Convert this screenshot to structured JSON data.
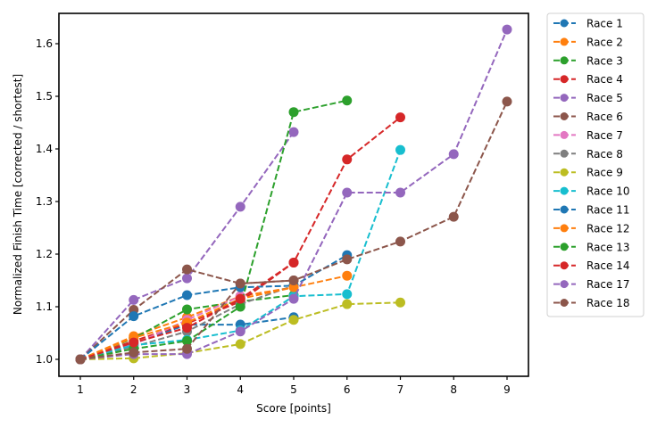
{
  "chart_data": {
    "type": "line",
    "title": "",
    "xlabel": "Score [points]",
    "ylabel": "Normalized Finish Time [corrected / shortest]",
    "xlim": [
      0.6,
      9.4
    ],
    "ylim": [
      0.97,
      1.655
    ],
    "xticks": [
      1,
      2,
      3,
      4,
      5,
      6,
      7,
      8,
      9
    ],
    "yticks": [
      1.0,
      1.1,
      1.2,
      1.3,
      1.4,
      1.5,
      1.6
    ],
    "ytick_labels": [
      "1.0",
      "1.1",
      "1.2",
      "1.3",
      "1.4",
      "1.5",
      "1.6"
    ],
    "grid": false,
    "legend_position": "outside upper right",
    "series": [
      {
        "name": "Race 1",
        "color": "#1f77b4",
        "x": [
          1,
          2,
          3,
          4,
          5
        ],
        "y": [
          1.0,
          1.03,
          1.066,
          1.066,
          1.08
        ]
      },
      {
        "name": "Race 2",
        "color": "#ff7f0e",
        "x": [
          1,
          2,
          3,
          4,
          5,
          6
        ],
        "y": [
          1.0,
          1.044,
          1.08,
          1.12,
          1.137,
          1.159
        ]
      },
      {
        "name": "Race 3",
        "color": "#2ca02c",
        "x": [
          1,
          2,
          3,
          4,
          5
        ],
        "y": [
          1.0,
          1.04,
          1.095,
          1.11,
          1.122
        ]
      },
      {
        "name": "Race 4",
        "color": "#d62728",
        "x": [
          1,
          2,
          3,
          4,
          5,
          6,
          7
        ],
        "y": [
          1.0,
          1.035,
          1.068,
          1.11,
          1.184,
          1.38,
          1.46
        ]
      },
      {
        "name": "Race 5",
        "color": "#9467bd",
        "x": [
          1,
          2,
          3,
          4,
          5
        ],
        "y": [
          1.0,
          1.113,
          1.154,
          1.29,
          1.432
        ]
      },
      {
        "name": "Race 6",
        "color": "#8c564b",
        "x": [
          1,
          2,
          3,
          4,
          5
        ],
        "y": [
          1.0,
          1.094,
          1.171,
          1.144,
          1.15
        ]
      },
      {
        "name": "Race 7",
        "color": "#e377c2",
        "x": [
          1,
          2,
          3,
          4
        ],
        "y": [
          1.0,
          1.028,
          1.075,
          1.12
        ]
      },
      {
        "name": "Race 8",
        "color": "#7f7f7f",
        "x": [
          1,
          2,
          3,
          4,
          5
        ],
        "y": [
          1.0,
          1.024,
          1.053,
          1.105,
          1.14
        ]
      },
      {
        "name": "Race 9",
        "color": "#bcbd22",
        "x": [
          1,
          2,
          3,
          4,
          5,
          6,
          7
        ],
        "y": [
          1.0,
          1.002,
          1.012,
          1.029,
          1.075,
          1.105,
          1.108
        ]
      },
      {
        "name": "Race 10",
        "color": "#17becf",
        "x": [
          1,
          2,
          3,
          4,
          5,
          6,
          7
        ],
        "y": [
          1.0,
          1.027,
          1.037,
          1.055,
          1.12,
          1.124,
          1.398
        ]
      },
      {
        "name": "Race 11",
        "color": "#1f77b4",
        "x": [
          1,
          2,
          3,
          4,
          5,
          6
        ],
        "y": [
          1.0,
          1.082,
          1.122,
          1.137,
          1.14,
          1.198
        ]
      },
      {
        "name": "Race 12",
        "color": "#ff7f0e",
        "x": [
          1,
          2,
          3,
          4,
          5
        ],
        "y": [
          1.0,
          1.041,
          1.07,
          1.115,
          1.137
        ]
      },
      {
        "name": "Race 13",
        "color": "#2ca02c",
        "x": [
          1,
          2,
          3,
          4,
          5,
          6
        ],
        "y": [
          1.0,
          1.02,
          1.035,
          1.1,
          1.47,
          1.492
        ]
      },
      {
        "name": "Race 14",
        "color": "#d62728",
        "x": [
          1,
          2,
          3,
          4,
          5
        ],
        "y": [
          1.0,
          1.032,
          1.06,
          1.115,
          1.184
        ]
      },
      {
        "name": "Race 17",
        "color": "#9467bd",
        "x": [
          1,
          2,
          3,
          4,
          5,
          6,
          7,
          8,
          9
        ],
        "y": [
          1.0,
          1.01,
          1.01,
          1.053,
          1.115,
          1.317,
          1.317,
          1.39,
          1.627
        ]
      },
      {
        "name": "Race 18",
        "color": "#8c564b",
        "x": [
          1,
          2,
          3,
          4,
          5,
          6,
          7,
          8,
          9
        ],
        "y": [
          1.0,
          1.013,
          1.02,
          1.144,
          1.15,
          1.19,
          1.224,
          1.271,
          1.49
        ]
      }
    ]
  }
}
